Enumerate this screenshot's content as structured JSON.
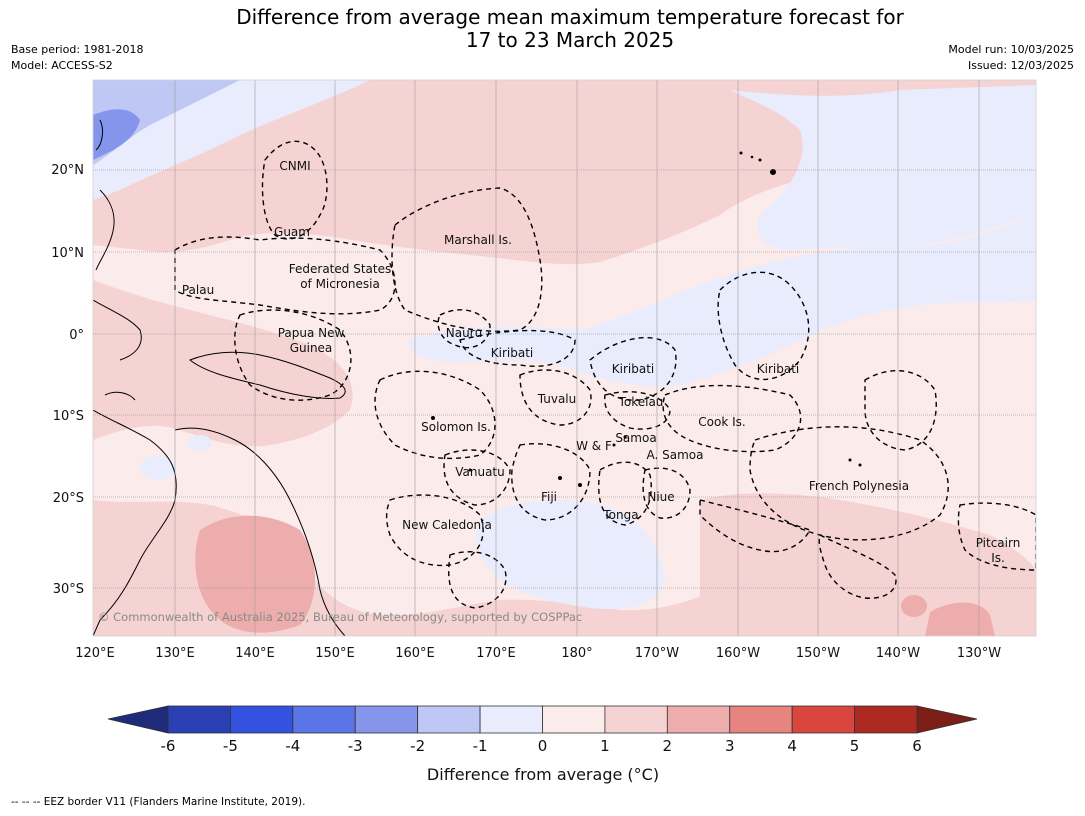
{
  "title": {
    "line1": "Difference from average mean maximum temperature forecast for",
    "line2": "17 to 23 March 2025"
  },
  "meta_left": {
    "base_period": "Base period: 1981-2018",
    "model": "Model: ACCESS-S2"
  },
  "meta_right": {
    "model_run": "Model run: 10/03/2025",
    "issued": "Issued: 12/03/2025"
  },
  "map": {
    "lat_labels": [
      "20°N",
      "10°N",
      "0°",
      "10°S",
      "20°S",
      "30°S"
    ],
    "lon_labels": [
      "120°E",
      "130°E",
      "140°E",
      "150°E",
      "160°E",
      "170°E",
      "180°",
      "170°W",
      "160°W",
      "150°W",
      "140°W",
      "130°W"
    ],
    "places": {
      "cnmi": "CNMI",
      "guam": "Guam",
      "marshall": "Marshall Is.",
      "fsm_1": "Federated States",
      "fsm_2": "of Micronesia",
      "palau": "Palau",
      "png_1": "Papua New",
      "png_2": "Guinea",
      "nauru": "Nauru",
      "kiribati_w": "Kiribati",
      "kiribati_c": "Kiribati",
      "kiribati_e": "Kiribati",
      "tuvalu": "Tuvalu",
      "tokelau": "Tokelau",
      "cook": "Cook Is.",
      "solomon": "Solomon Is.",
      "samoa": "Samoa",
      "wf": "W & F",
      "asamoa": "A. Samoa",
      "vanuatu": "Vanuatu",
      "fiji": "Fiji",
      "niue": "Niue",
      "tonga": "Tonga",
      "frenchpoly": "French Polynesia",
      "newcal": "New Caledonia",
      "pitcairn_1": "Pitcairn",
      "pitcairn_2": "Is."
    },
    "copyright": "© Commonwealth of Australia 2025, Bureau of Meteorology, supported by COSPPac"
  },
  "colorbar": {
    "ticks": [
      "-6",
      "-5",
      "-4",
      "-3",
      "-2",
      "-1",
      "0",
      "1",
      "2",
      "3",
      "4",
      "5",
      "6"
    ],
    "label": "Difference from average (°C)",
    "colors": {
      "below_min": "#1e2a7a",
      "bins": [
        "#2a40b3",
        "#3352e0",
        "#5b74e6",
        "#8595ec",
        "#bfc8f5",
        "#e8ecfc",
        "#fcebeb",
        "#f6d3d3",
        "#eeadad",
        "#e6847f",
        "#d9463e",
        "#ac2a21"
      ],
      "above_max": "#7a1e17"
    }
  },
  "footer": "--  --  -- EEZ border V11 (Flanders Marine Institute, 2019)."
}
